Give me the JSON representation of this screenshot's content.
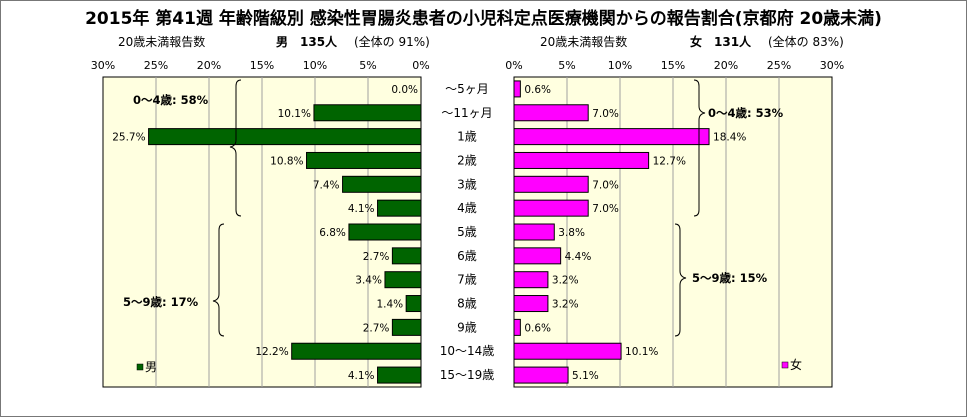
{
  "title": "2015年 第41週 年齢階級別 感染性胃腸炎患者の小児科定点医療機関からの報告割合(京都府 20歳未満)",
  "left_panel": {
    "sub_label": "20歳未満報告数",
    "sex": "男",
    "count_text": "135人",
    "ratio_text": "(全体の 91%)",
    "group_labels": [
      "0～4歳: 58%",
      "5～9歳: 17%"
    ],
    "legend": "男",
    "color": "#006400"
  },
  "right_panel": {
    "sub_label": "20歳未満報告数",
    "sex": "女",
    "count_text": "131人",
    "ratio_text": "(全体の 83%)",
    "group_labels": [
      "0～4歳: 53%",
      "5～9歳: 15%"
    ],
    "legend": "女",
    "color": "#ff00ff"
  },
  "chart_data": {
    "type": "bar",
    "orientation": "horizontal",
    "categories": [
      "～5ヶ月",
      "～11ヶ月",
      "1歳",
      "2歳",
      "3歳",
      "4歳",
      "5歳",
      "6歳",
      "7歳",
      "8歳",
      "9歳",
      "10～14歳",
      "15～19歳"
    ],
    "series": [
      {
        "name": "男",
        "values": [
          0.0,
          10.1,
          25.7,
          10.8,
          7.4,
          4.1,
          6.8,
          2.7,
          3.4,
          1.4,
          2.7,
          12.2,
          4.1
        ],
        "labels": [
          "0.0%",
          "10.1%",
          "25.7%",
          "10.8%",
          "7.4%",
          "4.1%",
          "6.8%",
          "2.7%",
          "3.4%",
          "1.4%",
          "2.7%",
          "12.2%",
          "4.1%"
        ]
      },
      {
        "name": "女",
        "values": [
          0.6,
          7.0,
          18.4,
          12.7,
          7.0,
          7.0,
          3.8,
          4.4,
          3.2,
          3.2,
          0.6,
          10.1,
          5.1
        ],
        "labels": [
          "0.6%",
          "7.0%",
          "18.4%",
          "12.7%",
          "7.0%",
          "7.0%",
          "3.8%",
          "4.4%",
          "3.2%",
          "3.2%",
          "0.6%",
          "10.1%",
          "5.1%"
        ]
      }
    ],
    "xlim": [
      0,
      30
    ],
    "ticks": [
      "0%",
      "5%",
      "10%",
      "15%",
      "20%",
      "25%",
      "30%"
    ],
    "grid": true
  }
}
